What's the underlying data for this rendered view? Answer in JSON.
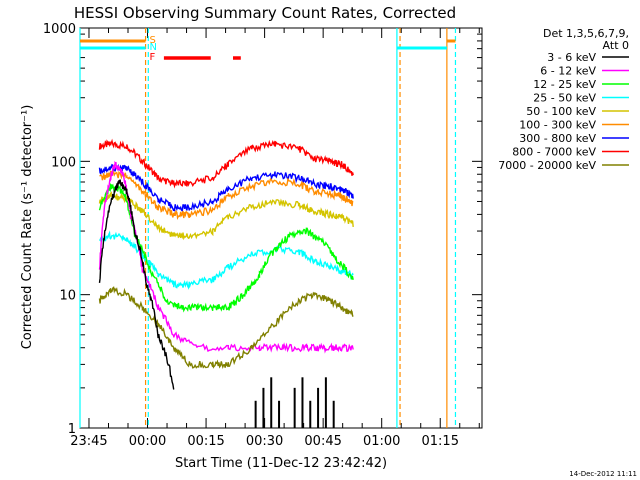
{
  "chart_data": {
    "type": "line",
    "title": "HESSI Observing Summary Count Rates, Corrected",
    "xlabel": "Start Time (11-Dec-12 23:42:42)",
    "ylabel": "Corrected Count Rate (s⁻¹ detector⁻¹)",
    "y_scale": "log",
    "ylim": [
      1,
      1000
    ],
    "xlim_minutes_since_2342_42": [
      0,
      103
    ],
    "y_ticks": [
      "1",
      "10",
      "100",
      "1000"
    ],
    "x_ticks": [
      {
        "label": "23:45",
        "min": 2.3
      },
      {
        "label": "00:00",
        "min": 17.3
      },
      {
        "label": "00:15",
        "min": 32.3
      },
      {
        "label": "00:30",
        "min": 47.3
      },
      {
        "label": "00:45",
        "min": 62.3
      },
      {
        "label": "01:00",
        "min": 77.3
      },
      {
        "label": "01:15",
        "min": 92.3
      }
    ],
    "legend": {
      "position": "right",
      "header": [
        "Det 1,3,5,6,7,9,",
        "Att 0"
      ],
      "entries": [
        {
          "label": "3 - 6 keV",
          "color": "#000000"
        },
        {
          "label": "6 - 12 keV",
          "color": "#ff00ff"
        },
        {
          "label": "12 - 25 keV",
          "color": "#00ff00"
        },
        {
          "label": "25 - 50 keV",
          "color": "#00ffff"
        },
        {
          "label": "50 - 100 keV",
          "color": "#d4c400"
        },
        {
          "label": "100 - 300 keV",
          "color": "#ff8c00"
        },
        {
          "label": "300 - 800 keV",
          "color": "#0000ff"
        },
        {
          "label": "800 - 7000 keV",
          "color": "#ff0000"
        },
        {
          "label": "7000 - 20000 keV",
          "color": "#808000"
        }
      ]
    },
    "flags": [
      {
        "label": "S",
        "color": "#ff8c00"
      },
      {
        "label": "N",
        "color": "#00ffff"
      },
      {
        "label": "F",
        "color": "#ff0000"
      }
    ],
    "series": [
      {
        "color": "#ff0000",
        "x": [
          5,
          8,
          12,
          16,
          20,
          24,
          28,
          34,
          38,
          44,
          50,
          56,
          60,
          64,
          67,
          70
        ],
        "values": [
          130,
          135,
          130,
          100,
          75,
          68,
          68,
          75,
          95,
          125,
          135,
          125,
          105,
          100,
          95,
          80
        ]
      },
      {
        "color": "#0000ff",
        "x": [
          5,
          8,
          12,
          16,
          20,
          24,
          28,
          34,
          38,
          44,
          50,
          56,
          60,
          64,
          67,
          70
        ],
        "values": [
          85,
          90,
          88,
          70,
          52,
          45,
          45,
          50,
          62,
          75,
          80,
          75,
          68,
          65,
          62,
          55
        ]
      },
      {
        "color": "#ff8c00",
        "x": [
          5,
          8,
          12,
          16,
          20,
          24,
          28,
          34,
          38,
          44,
          50,
          56,
          60,
          64,
          67,
          70
        ],
        "values": [
          75,
          80,
          78,
          60,
          45,
          40,
          40,
          43,
          55,
          65,
          72,
          67,
          60,
          57,
          55,
          48
        ]
      },
      {
        "color": "#d4c400",
        "x": [
          5,
          8,
          12,
          16,
          20,
          24,
          28,
          34,
          38,
          44,
          50,
          56,
          60,
          64,
          67,
          70
        ],
        "values": [
          50,
          55,
          52,
          42,
          32,
          28,
          28,
          30,
          38,
          46,
          50,
          47,
          42,
          40,
          38,
          34
        ]
      },
      {
        "color": "#00ffff",
        "x": [
          5,
          8,
          12,
          16,
          20,
          24,
          28,
          34,
          38,
          44,
          50,
          56,
          60,
          64,
          67,
          70
        ],
        "values": [
          25,
          28,
          26,
          20,
          14,
          12,
          12,
          13,
          16,
          20,
          22,
          21,
          18,
          16,
          15,
          14
        ]
      },
      {
        "color": "#00ff00",
        "x": [
          5,
          8,
          11,
          14,
          18,
          22,
          26,
          30,
          34,
          38,
          42,
          46,
          50,
          54,
          58,
          62,
          66,
          70
        ],
        "values": [
          45,
          65,
          60,
          28,
          15,
          9,
          8,
          8,
          8,
          8,
          10,
          14,
          22,
          28,
          30,
          25,
          18,
          13
        ]
      },
      {
        "color": "#ff00ff",
        "x": [
          5,
          7,
          9,
          11,
          13,
          16,
          20,
          24,
          30,
          38,
          46,
          52,
          58,
          62,
          66,
          70
        ],
        "values": [
          15,
          60,
          95,
          80,
          40,
          15,
          8,
          5,
          4,
          4,
          4,
          4,
          4,
          4,
          4,
          4
        ]
      },
      {
        "color": "#808000",
        "x": [
          5,
          8,
          12,
          16,
          20,
          24,
          28,
          34,
          38,
          44,
          50,
          56,
          60,
          64,
          67,
          70
        ],
        "values": [
          9,
          11,
          10,
          8,
          6,
          4,
          3,
          3,
          3,
          4,
          6,
          9,
          10,
          9,
          8,
          7
        ]
      },
      {
        "color": "#000000",
        "x": [
          5,
          8,
          10,
          12,
          14,
          17,
          20,
          24
        ],
        "values": [
          12,
          50,
          70,
          60,
          30,
          12,
          5,
          2
        ]
      }
    ],
    "vertical_lines": [
      {
        "min": 0,
        "color": "#00ffff",
        "dash": false
      },
      {
        "min": 17.5,
        "color": "#00ffff",
        "dash": true
      },
      {
        "min": 16.8,
        "color": "#ff8c00",
        "dash": true
      },
      {
        "min": 81.2,
        "color": "#00ffff",
        "dash": false
      },
      {
        "min": 82.0,
        "color": "#ff8c00",
        "dash": true
      },
      {
        "min": 94.0,
        "color": "#ff8c00",
        "dash": false
      },
      {
        "min": 96.2,
        "color": "#00ffff",
        "dash": true
      }
    ]
  },
  "footer": {
    "timestamp": "14-Dec-2012 11:11"
  }
}
